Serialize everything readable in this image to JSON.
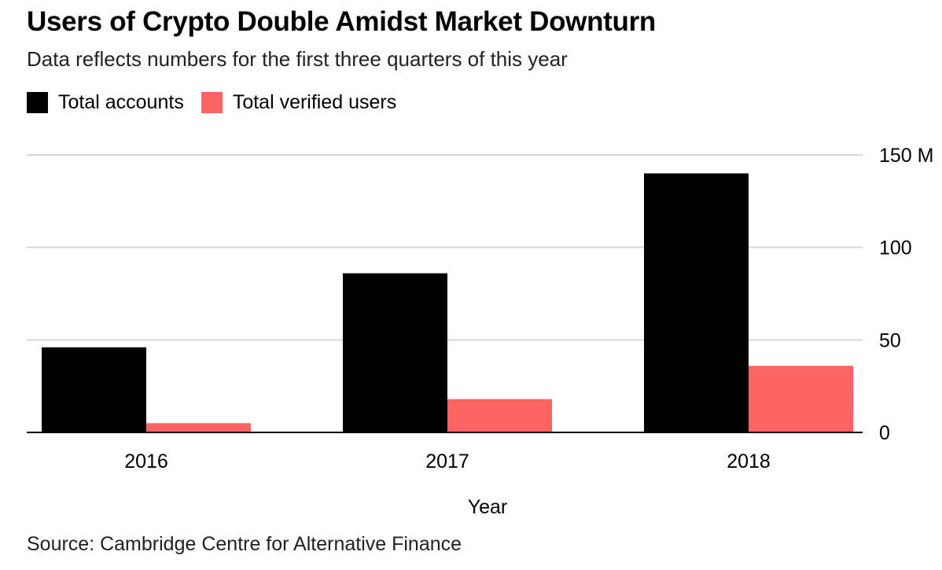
{
  "chart_data": {
    "type": "bar",
    "title": "Users of Crypto Double Amidst Market Downturn",
    "subtitle": "Data reflects numbers for the first three quarters of this year",
    "categories": [
      "2016",
      "2017",
      "2018"
    ],
    "series": [
      {
        "name": "Total accounts",
        "color": "#000000",
        "values": [
          46,
          86,
          140
        ]
      },
      {
        "name": "Total verified users",
        "color": "#ff6464",
        "values": [
          5,
          18,
          36
        ]
      }
    ],
    "xlabel": "Year",
    "ylabel": "",
    "ylim": [
      0,
      150
    ],
    "yticks": [
      {
        "value": 0,
        "label": "0"
      },
      {
        "value": 50,
        "label": "50"
      },
      {
        "value": 100,
        "label": "100"
      },
      {
        "value": 150,
        "label": "150 M"
      }
    ],
    "grid": true,
    "legend_position": "top-left",
    "y_axis_side": "right"
  },
  "source": "Source: Cambridge Centre for Alternative Finance"
}
